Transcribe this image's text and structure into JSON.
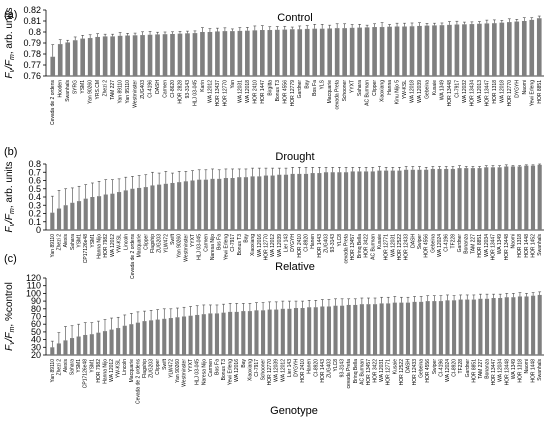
{
  "figure": {
    "xlabel": "Genotype"
  },
  "chart_data": [
    {
      "type": "bar",
      "panel_label": "(a)",
      "title": "Control",
      "ylabel": "Fv/Fm, arb. units",
      "ylabel_parts": {
        "f1": "F",
        "sub1": "v",
        "mid": "/F",
        "sub2": "m",
        "suffix": ", arb. units"
      },
      "ylim": [
        0.76,
        0.82
      ],
      "yticks": [
        0.76,
        0.77,
        0.78,
        0.79,
        0.8,
        0.81,
        0.82
      ],
      "ytick_labels": [
        "0.76",
        "0.77",
        "0.78",
        "0.79",
        "0.8",
        "0.81",
        "0.82"
      ],
      "bar_color": "#7f7f7f",
      "error_bars": true,
      "categories": [
        "Cevada de 2 ordens",
        "Hooden",
        "Swanhals",
        "SYRG",
        "YSM1",
        "Yan 90260",
        "YRS.CM",
        "Zhezi 2",
        "TAM 227",
        "Yan 89110",
        "Yan 95110",
        "Westminster",
        "ZUG403",
        "CI-4196",
        "DASH",
        "Carmen",
        "CI-8620",
        "HOR 2828",
        "93-3143",
        "HLJ 03-045",
        "Karin",
        "WA 12012",
        "HOR 13437",
        "HOR 12770",
        "Yan",
        "WA 12031",
        "WA 12018",
        "HOR 2410",
        "HOR 1447",
        "Birgitta",
        "Bonus T3",
        "HOR 4556",
        "HOR 12779",
        "Gardner",
        "Bay",
        "Bos Fa",
        "YLS",
        "Macquarie",
        "cevada Preta",
        "Schooner",
        "YYXT",
        "Sahara",
        "AC Burman",
        "Clipper",
        "Xiaoxiang",
        "Hanna",
        "Kinu Nijo 5",
        "YW-KSL",
        "WA 12018",
        "WA 12039",
        "Gebeina",
        "Kusaie",
        "WA 1349",
        "HOR 13448",
        "CI-7917",
        "WA 12032",
        "HOR 13434",
        "WA 12013",
        "HOR 13447",
        "HOR 1318",
        "WA 12018",
        "HOR 12770",
        "DYGYH",
        "Naomi",
        "Yewi Erleng",
        "HOR 8851"
      ],
      "values": [
        0.7775,
        0.789,
        0.7905,
        0.7925,
        0.794,
        0.7945,
        0.7955,
        0.796,
        0.796,
        0.7965,
        0.7968,
        0.797,
        0.7972,
        0.7975,
        0.7978,
        0.798,
        0.7982,
        0.7985,
        0.7988,
        0.799,
        0.8,
        0.8,
        0.8005,
        0.8008,
        0.8008,
        0.801,
        0.8012,
        0.8015,
        0.8018,
        0.8018,
        0.802,
        0.8022,
        0.8025,
        0.8025,
        0.8028,
        0.803,
        0.803,
        0.8032,
        0.8035,
        0.8035,
        0.8038,
        0.804,
        0.8042,
        0.8045,
        0.8045,
        0.8048,
        0.805,
        0.805,
        0.8052,
        0.8055,
        0.8058,
        0.806,
        0.8062,
        0.8065,
        0.8068,
        0.807,
        0.8072,
        0.8075,
        0.8078,
        0.808,
        0.8085,
        0.809,
        0.8095,
        0.81,
        0.811,
        0.8125
      ],
      "errors": [
        0.011,
        0.004,
        0.002,
        0.003,
        0.003,
        0.003,
        0.003,
        0.002,
        0.002,
        0.003,
        0.002,
        0.002,
        0.003,
        0.003,
        0.002,
        0.002,
        0.002,
        0.002,
        0.002,
        0.002,
        0.004,
        0.003,
        0.003,
        0.003,
        0.002,
        0.003,
        0.003,
        0.004,
        0.004,
        0.003,
        0.003,
        0.003,
        0.002,
        0.003,
        0.003,
        0.004,
        0.004,
        0.003,
        0.004,
        0.004,
        0.003,
        0.003,
        0.002,
        0.003,
        0.004,
        0.002,
        0.003,
        0.003,
        0.003,
        0.003,
        0.002,
        0.002,
        0.002,
        0.003,
        0.003,
        0.002,
        0.002,
        0.002,
        0.003,
        0.003,
        0.002,
        0.003,
        0.002,
        0.003,
        0.002,
        0.002
      ]
    },
    {
      "type": "bar",
      "panel_label": "(b)",
      "title": "Drought",
      "ylabel": "Fv/Fm, arb. units",
      "ylabel_parts": {
        "f1": "F",
        "sub1": "v",
        "mid": "/F",
        "sub2": "m",
        "suffix": ", arb. units"
      },
      "ylim": [
        0,
        0.8
      ],
      "yticks": [
        0,
        0.1,
        0.2,
        0.3,
        0.4,
        0.5,
        0.6,
        0.7,
        0.8
      ],
      "ytick_labels": [
        "0",
        "0.1",
        "0.2",
        "0.3",
        "0.4",
        "0.5",
        "0.6",
        "0.7",
        "0.8"
      ],
      "bar_color": "#7f7f7f",
      "error_bars": true,
      "categories": [
        "Yan 89110",
        "Zhezi 2",
        "Alexis",
        "Sahara",
        "YSM1",
        "CP17126e48",
        "YSM1",
        "Hanna Nijo",
        "HOR 7982",
        "WA 12012",
        "YW-KSL",
        "Lincoln",
        "Cevada de 2 ordens",
        "Macquarie",
        "Clipper",
        "Flagship",
        "ZUG203",
        "YLW472",
        "Swift",
        "Yan 90260",
        "Westminster",
        "YYXT",
        "HLJ 03-045",
        "Carmen",
        "Naresa Nijo",
        "Bos Fa",
        "Yewi Erleng",
        "CI-7917",
        "Bonus T3",
        "Bay",
        "Xiaoxiang",
        "WA 12016",
        "HOR 12770",
        "WA 12012",
        "WA 12039",
        "Lier 143",
        "DYGYH",
        "HOR 2410",
        "CI-8920",
        "Hanen",
        "HOR 1443",
        "ZUG403",
        "93-3143",
        "YLC8",
        "cevada Preta",
        "HOR 13457",
        "Brinq Bella",
        "HOR 3422",
        "AC Burman",
        "Kusaie",
        "HOR 12771",
        "WA 12031",
        "HOR 12522",
        "HOR 12433",
        "DASH",
        "Swiper",
        "HOR 4556",
        "Gebeina",
        "WA 12024",
        "CI-4196",
        "TF228",
        "Gardner",
        "Bonanza",
        "TAM 227",
        "HOR 8851",
        "WA 12034",
        "HOR 13447",
        "WA 1349",
        "HOR 13448",
        "Naomi",
        "HOR 1318",
        "HOR 1448",
        "HOR 1452",
        "Swanhals"
      ],
      "values": [
        0.21,
        0.26,
        0.3,
        0.33,
        0.35,
        0.38,
        0.4,
        0.41,
        0.43,
        0.44,
        0.46,
        0.48,
        0.5,
        0.51,
        0.52,
        0.54,
        0.55,
        0.56,
        0.57,
        0.58,
        0.59,
        0.6,
        0.61,
        0.61,
        0.62,
        0.62,
        0.63,
        0.63,
        0.64,
        0.64,
        0.65,
        0.65,
        0.66,
        0.66,
        0.67,
        0.67,
        0.68,
        0.68,
        0.68,
        0.69,
        0.69,
        0.7,
        0.7,
        0.7,
        0.7,
        0.71,
        0.71,
        0.71,
        0.71,
        0.72,
        0.72,
        0.72,
        0.72,
        0.73,
        0.73,
        0.73,
        0.73,
        0.74,
        0.74,
        0.74,
        0.74,
        0.75,
        0.75,
        0.75,
        0.75,
        0.76,
        0.76,
        0.76,
        0.77,
        0.77,
        0.77,
        0.78,
        0.78,
        0.79
      ],
      "errors": [
        0.2,
        0.22,
        0.2,
        0.18,
        0.18,
        0.17,
        0.17,
        0.18,
        0.18,
        0.17,
        0.16,
        0.16,
        0.15,
        0.15,
        0.15,
        0.16,
        0.14,
        0.15,
        0.12,
        0.13,
        0.12,
        0.12,
        0.12,
        0.12,
        0.12,
        0.11,
        0.11,
        0.11,
        0.1,
        0.1,
        0.1,
        0.1,
        0.09,
        0.09,
        0.08,
        0.08,
        0.08,
        0.08,
        0.08,
        0.07,
        0.07,
        0.06,
        0.06,
        0.06,
        0.06,
        0.05,
        0.05,
        0.05,
        0.05,
        0.05,
        0.04,
        0.04,
        0.04,
        0.04,
        0.04,
        0.04,
        0.03,
        0.03,
        0.03,
        0.03,
        0.03,
        0.03,
        0.02,
        0.02,
        0.02,
        0.02,
        0.02,
        0.02,
        0.02,
        0.01,
        0.01,
        0.01,
        0.01,
        0.01
      ]
    },
    {
      "type": "bar",
      "panel_label": "(c)",
      "title": "Relative",
      "ylabel": "Fv/Fm, %control",
      "ylabel_parts": {
        "f1": "F",
        "sub1": "v",
        "mid": "/F",
        "sub2": "m",
        "suffix": ", %control"
      },
      "ylim": [
        20,
        120
      ],
      "yticks": [
        20,
        30,
        40,
        50,
        60,
        70,
        80,
        90,
        100,
        110,
        120
      ],
      "ytick_labels": [
        "20",
        "30",
        "40",
        "50",
        "60",
        "70",
        "80",
        "90",
        "100",
        "110",
        "120"
      ],
      "xlabel": "Genotype",
      "bar_color": "#7f7f7f",
      "error_bars": true,
      "categories": [
        "Yan 89110",
        "Zhezi 2",
        "Alexis",
        "Sahara",
        "YSM1",
        "CP17126e48",
        "YSM1",
        "HOR 7982",
        "Hanna Nijo",
        "WA 12012",
        "YW-KSL",
        "Lincoln",
        "Macquarie",
        "Cevada de 2 ordens",
        "Flagship",
        "ZUG203",
        "Clipper",
        "Swift",
        "YLW472",
        "Yan 90260",
        "Westminster",
        "YYXT",
        "HLJ 03-045",
        "Naresa Nijo",
        "Carmen",
        "Bos Fa",
        "Bonus T3",
        "Yewi Erleng",
        "WA 12016",
        "Bay",
        "Xiaoxiang",
        "CI-7917",
        "Schooner",
        "HOR 12770",
        "WA 12039",
        "WA 12012",
        "Lier 143",
        "DYGYH",
        "HOR 2410",
        "Hanen",
        "CI-8920",
        "HOR 1443",
        "ZUG403",
        "YLC8",
        "93-3143",
        "cevada Preta",
        "Brinq Bella",
        "AC Burman",
        "HOR 13457",
        "HOR 3422",
        "WA 12031",
        "HOR 12771",
        "Kusaie",
        "HOR 12522",
        "DASH",
        "HOR 12433",
        "Gebeina",
        "HOR 4556",
        "Swiper",
        "CI-4196",
        "WA 12024",
        "CI-8920",
        "TF228",
        "Gardner",
        "HOR 8851",
        "TAM 227",
        "Bonanza",
        "HOR 13447",
        "WA 12034",
        "HOR 13448",
        "WA 1349",
        "HOR 1318",
        "Naomi",
        "HOR 1448",
        "Swanhals"
      ],
      "values": [
        30,
        35,
        39,
        42,
        44,
        46,
        47,
        49,
        51,
        53,
        55,
        58,
        60,
        62,
        64,
        65,
        66,
        67,
        68,
        69,
        70,
        71,
        72,
        73,
        74,
        74,
        75,
        76,
        76,
        77,
        77,
        78,
        78,
        79,
        79,
        80,
        80,
        81,
        81,
        82,
        82,
        83,
        83,
        84,
        84,
        85,
        85,
        86,
        86,
        86,
        87,
        87,
        88,
        88,
        88,
        89,
        89,
        90,
        90,
        90,
        91,
        91,
        92,
        92,
        92,
        93,
        93,
        94,
        94,
        95,
        95,
        96,
        96,
        97,
        98
      ],
      "errors": [
        8,
        14,
        18,
        16,
        16,
        16,
        15,
        15,
        15,
        15,
        14,
        14,
        14,
        14,
        13,
        13,
        13,
        13,
        12,
        12,
        12,
        12,
        12,
        12,
        11,
        11,
        11,
        11,
        11,
        10,
        10,
        10,
        10,
        10,
        10,
        10,
        10,
        9,
        9,
        9,
        9,
        9,
        9,
        9,
        9,
        8,
        8,
        8,
        8,
        8,
        8,
        8,
        8,
        7,
        7,
        7,
        7,
        7,
        7,
        7,
        7,
        6,
        6,
        6,
        6,
        6,
        6,
        5,
        5,
        5,
        5,
        5,
        4,
        4,
        4
      ]
    }
  ]
}
